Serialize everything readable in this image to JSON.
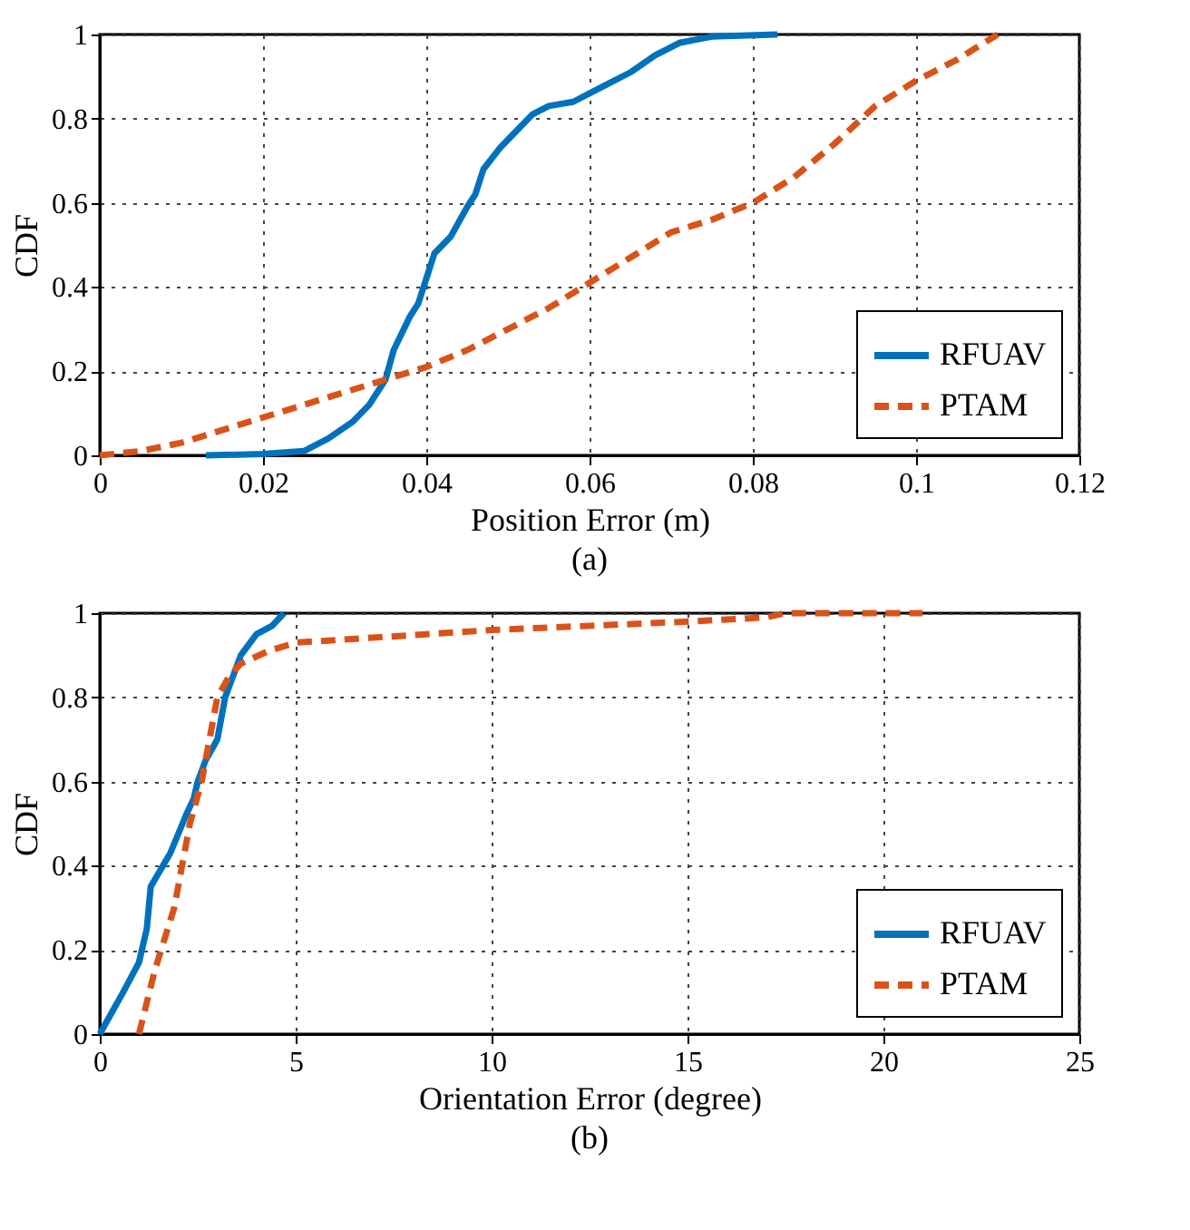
{
  "chart_data": [
    {
      "type": "line",
      "title": "(a)",
      "xlabel": "Position Error (m)",
      "ylabel": "CDF",
      "xlim": [
        0,
        0.12
      ],
      "xticks": [
        0,
        0.02,
        0.04,
        0.06,
        0.08,
        0.1,
        0.12
      ],
      "ylim": [
        0,
        1
      ],
      "yticks": [
        0,
        0.2,
        0.4,
        0.6,
        0.8,
        1
      ],
      "grid": true,
      "legend": "bottom right",
      "series": [
        {
          "name": "RFUAV",
          "color": "#0072bd",
          "line_style": "solid",
          "x": [
            0.013,
            0.02,
            0.025,
            0.028,
            0.031,
            0.033,
            0.035,
            0.036,
            0.038,
            0.039,
            0.04,
            0.041,
            0.043,
            0.045,
            0.046,
            0.047,
            0.049,
            0.051,
            0.053,
            0.055,
            0.058,
            0.06,
            0.062,
            0.065,
            0.068,
            0.071,
            0.075,
            0.083
          ],
          "values": [
            0,
            0.003,
            0.01,
            0.04,
            0.08,
            0.12,
            0.18,
            0.25,
            0.33,
            0.36,
            0.42,
            0.48,
            0.52,
            0.59,
            0.62,
            0.68,
            0.73,
            0.77,
            0.81,
            0.83,
            0.84,
            0.86,
            0.88,
            0.91,
            0.95,
            0.98,
            0.995,
            1
          ]
        },
        {
          "name": "PTAM",
          "color": "#d95319",
          "line_style": "dashed",
          "x": [
            0,
            0.005,
            0.01,
            0.015,
            0.02,
            0.025,
            0.03,
            0.035,
            0.04,
            0.045,
            0.05,
            0.055,
            0.06,
            0.065,
            0.07,
            0.075,
            0.08,
            0.085,
            0.09,
            0.095,
            0.1,
            0.105,
            0.11
          ],
          "values": [
            0,
            0.01,
            0.03,
            0.06,
            0.09,
            0.12,
            0.15,
            0.18,
            0.21,
            0.25,
            0.3,
            0.35,
            0.41,
            0.47,
            0.53,
            0.56,
            0.6,
            0.66,
            0.74,
            0.83,
            0.89,
            0.94,
            1
          ]
        }
      ]
    },
    {
      "type": "line",
      "title": "(b)",
      "xlabel": "Orientation Error (degree)",
      "ylabel": "CDF",
      "xlim": [
        0,
        25
      ],
      "xticks": [
        0,
        5,
        10,
        15,
        20,
        25
      ],
      "ylim": [
        0,
        1
      ],
      "yticks": [
        0,
        0.2,
        0.4,
        0.6,
        0.8,
        1
      ],
      "grid": true,
      "legend": "bottom right",
      "series": [
        {
          "name": "RFUAV",
          "color": "#0072bd",
          "line_style": "solid",
          "x": [
            0,
            0.3,
            0.6,
            1.0,
            1.2,
            1.3,
            1.8,
            2.2,
            2.4,
            2.5,
            2.7,
            3.0,
            3.2,
            3.4,
            3.6,
            4.0,
            4.4,
            4.7
          ],
          "values": [
            0,
            0.05,
            0.1,
            0.17,
            0.25,
            0.35,
            0.43,
            0.52,
            0.56,
            0.6,
            0.65,
            0.7,
            0.8,
            0.85,
            0.9,
            0.95,
            0.97,
            1
          ]
        },
        {
          "name": "PTAM",
          "color": "#d95319",
          "line_style": "dashed",
          "x": [
            1.0,
            1.4,
            1.9,
            2.3,
            2.6,
            2.8,
            3.0,
            3.3,
            3.6,
            4.3,
            5,
            10,
            15,
            17,
            17.5,
            21
          ],
          "values": [
            0,
            0.15,
            0.3,
            0.5,
            0.6,
            0.7,
            0.8,
            0.85,
            0.88,
            0.91,
            0.93,
            0.96,
            0.98,
            0.99,
            1.0,
            1.0
          ]
        }
      ]
    }
  ]
}
